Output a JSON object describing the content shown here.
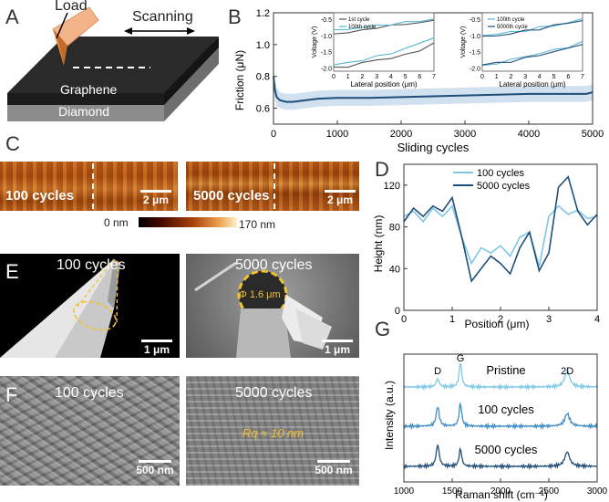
{
  "panels": {
    "A": "A",
    "B": "B",
    "C": "C",
    "D": "D",
    "E": "E",
    "F": "F",
    "G": "G"
  },
  "panelA": {
    "load": "Load",
    "scanning": "Scanning",
    "graphene": "Graphene",
    "diamond": "Diamond"
  },
  "panelC": {
    "left_label": "100 cycles",
    "right_label": "5000 cycles",
    "left_scale": "2 μm",
    "right_scale": "2 μm",
    "colorbar_min": "0 nm",
    "colorbar_max": "170 nm"
  },
  "panelE": {
    "left_label": "100 cycles",
    "right_label": "5000 cycles",
    "annotation": "Φ 1.6 μm",
    "left_scale": "1 μm",
    "right_scale": "1 μm"
  },
  "panelF": {
    "left_label": "100 cycles",
    "right_label": "5000 cycles",
    "annotation": "Rq ≈ 10 nm",
    "left_scale": "500 nm",
    "right_scale": "500 nm"
  },
  "chart_data": [
    {
      "id": "B-main",
      "type": "line",
      "xlabel": "Sliding cycles",
      "ylabel": "Friction (μN)",
      "xlim": [
        0,
        5000
      ],
      "ylim": [
        0.5,
        1.2
      ],
      "xticks": [
        0,
        1000,
        2000,
        3000,
        4000,
        5000
      ],
      "yticks": [
        0.6,
        0.8,
        1.0,
        1.2
      ],
      "x": [
        0,
        20,
        50,
        100,
        200,
        300,
        400,
        500,
        700,
        1000,
        1500,
        2000,
        2500,
        3000,
        3500,
        4000,
        4500,
        4900,
        5000
      ],
      "values": [
        0.8,
        0.72,
        0.67,
        0.65,
        0.64,
        0.64,
        0.645,
        0.65,
        0.66,
        0.665,
        0.665,
        0.67,
        0.675,
        0.68,
        0.685,
        0.69,
        0.69,
        0.69,
        0.7
      ],
      "band": [
        0.07,
        0.06,
        0.06,
        0.05,
        0.05,
        0.05,
        0.05,
        0.05,
        0.05,
        0.05,
        0.05,
        0.05,
        0.05,
        0.05,
        0.05,
        0.05,
        0.05,
        0.05,
        0.05
      ]
    },
    {
      "id": "B-inset1",
      "type": "line",
      "xlabel": "Lateral position (μm)",
      "ylabel": "Voltage (V)",
      "xlim": [
        0,
        7
      ],
      "ylim": [
        -2.1,
        -0.3
      ],
      "xticks": [
        0,
        1,
        2,
        3,
        4,
        5,
        6,
        7
      ],
      "yticks": [
        -0.5,
        -1.0,
        -1.5,
        -2.0
      ],
      "series": [
        {
          "name": "1st cycle",
          "x": [
            0,
            1,
            2,
            3,
            4,
            5,
            6,
            7
          ],
          "upper": [
            -0.95,
            -0.9,
            -0.85,
            -0.75,
            -0.7,
            -0.65,
            -0.6,
            -0.55
          ],
          "lower": [
            -2.0,
            -1.95,
            -1.85,
            -1.75,
            -1.7,
            -1.6,
            -1.45,
            -1.25
          ]
        },
        {
          "name": "100th cycle",
          "x": [
            0,
            1,
            2,
            3,
            4,
            5,
            6,
            7
          ],
          "upper": [
            -0.85,
            -0.8,
            -0.75,
            -0.7,
            -0.65,
            -0.6,
            -0.55,
            -0.5
          ],
          "lower": [
            -1.9,
            -1.85,
            -1.75,
            -1.65,
            -1.55,
            -1.4,
            -1.25,
            -1.05
          ]
        }
      ]
    },
    {
      "id": "B-inset2",
      "type": "line",
      "xlabel": "Lateral position (μm)",
      "ylabel": "Voltage (V)",
      "xlim": [
        0,
        7
      ],
      "ylim": [
        -2.1,
        -0.3
      ],
      "xticks": [
        0,
        1,
        2,
        3,
        4,
        5,
        6,
        7
      ],
      "yticks": [
        -0.5,
        -1.0,
        -1.5,
        -2.0
      ],
      "series": [
        {
          "name": "100th cycle",
          "x": [
            0,
            1,
            2,
            3,
            4,
            5,
            6,
            7
          ],
          "upper": [
            -1.0,
            -0.95,
            -0.9,
            -0.85,
            -0.75,
            -0.7,
            -0.6,
            -0.5
          ],
          "lower": [
            -1.95,
            -1.85,
            -1.75,
            -1.65,
            -1.55,
            -1.45,
            -1.35,
            -1.2
          ]
        },
        {
          "name": "5000th cycle",
          "x": [
            0,
            1,
            2,
            3,
            4,
            5,
            6,
            7
          ],
          "upper": [
            -1.05,
            -1.0,
            -0.95,
            -0.85,
            -0.8,
            -0.7,
            -0.6,
            -0.55
          ],
          "lower": [
            -1.9,
            -1.85,
            -1.8,
            -1.7,
            -1.6,
            -1.5,
            -1.4,
            -1.25
          ]
        }
      ]
    },
    {
      "id": "D",
      "type": "line",
      "xlabel": "Position (μm)",
      "ylabel": "Height (nm)",
      "xlim": [
        0,
        4
      ],
      "ylim": [
        0,
        140
      ],
      "xticks": [
        0,
        1,
        2,
        3,
        4
      ],
      "yticks": [
        0,
        40,
        80,
        120
      ],
      "series": [
        {
          "name": "100 cycles",
          "x": [
            0,
            0.2,
            0.4,
            0.6,
            0.8,
            1.0,
            1.2,
            1.4,
            1.6,
            1.8,
            2.0,
            2.2,
            2.4,
            2.6,
            2.8,
            3.0,
            3.2,
            3.4,
            3.6,
            3.8,
            4.0
          ],
          "values": [
            90,
            95,
            85,
            98,
            90,
            100,
            70,
            45,
            60,
            55,
            62,
            52,
            70,
            75,
            42,
            90,
            100,
            92,
            96,
            88,
            90
          ]
        },
        {
          "name": "5000 cycles",
          "x": [
            0,
            0.2,
            0.4,
            0.6,
            0.8,
            1.0,
            1.2,
            1.4,
            1.6,
            1.8,
            2.0,
            2.2,
            2.4,
            2.6,
            2.8,
            3.0,
            3.2,
            3.4,
            3.6,
            3.8,
            4.0
          ],
          "values": [
            85,
            98,
            90,
            100,
            95,
            108,
            70,
            28,
            40,
            52,
            45,
            35,
            60,
            75,
            38,
            55,
            118,
            128,
            95,
            82,
            92
          ]
        }
      ]
    },
    {
      "id": "G",
      "type": "line",
      "xlabel": "Raman shift (cm⁻¹)",
      "ylabel": "Intensity (a.u.)",
      "xlim": [
        1000,
        3000
      ],
      "xticks": [
        1000,
        1500,
        2000,
        2500,
        3000
      ],
      "peaks": [
        "D",
        "G",
        "2D"
      ],
      "series": [
        {
          "name": "Pristine"
        },
        {
          "name": "100 cycles"
        },
        {
          "name": "5000 cycles"
        }
      ]
    }
  ]
}
